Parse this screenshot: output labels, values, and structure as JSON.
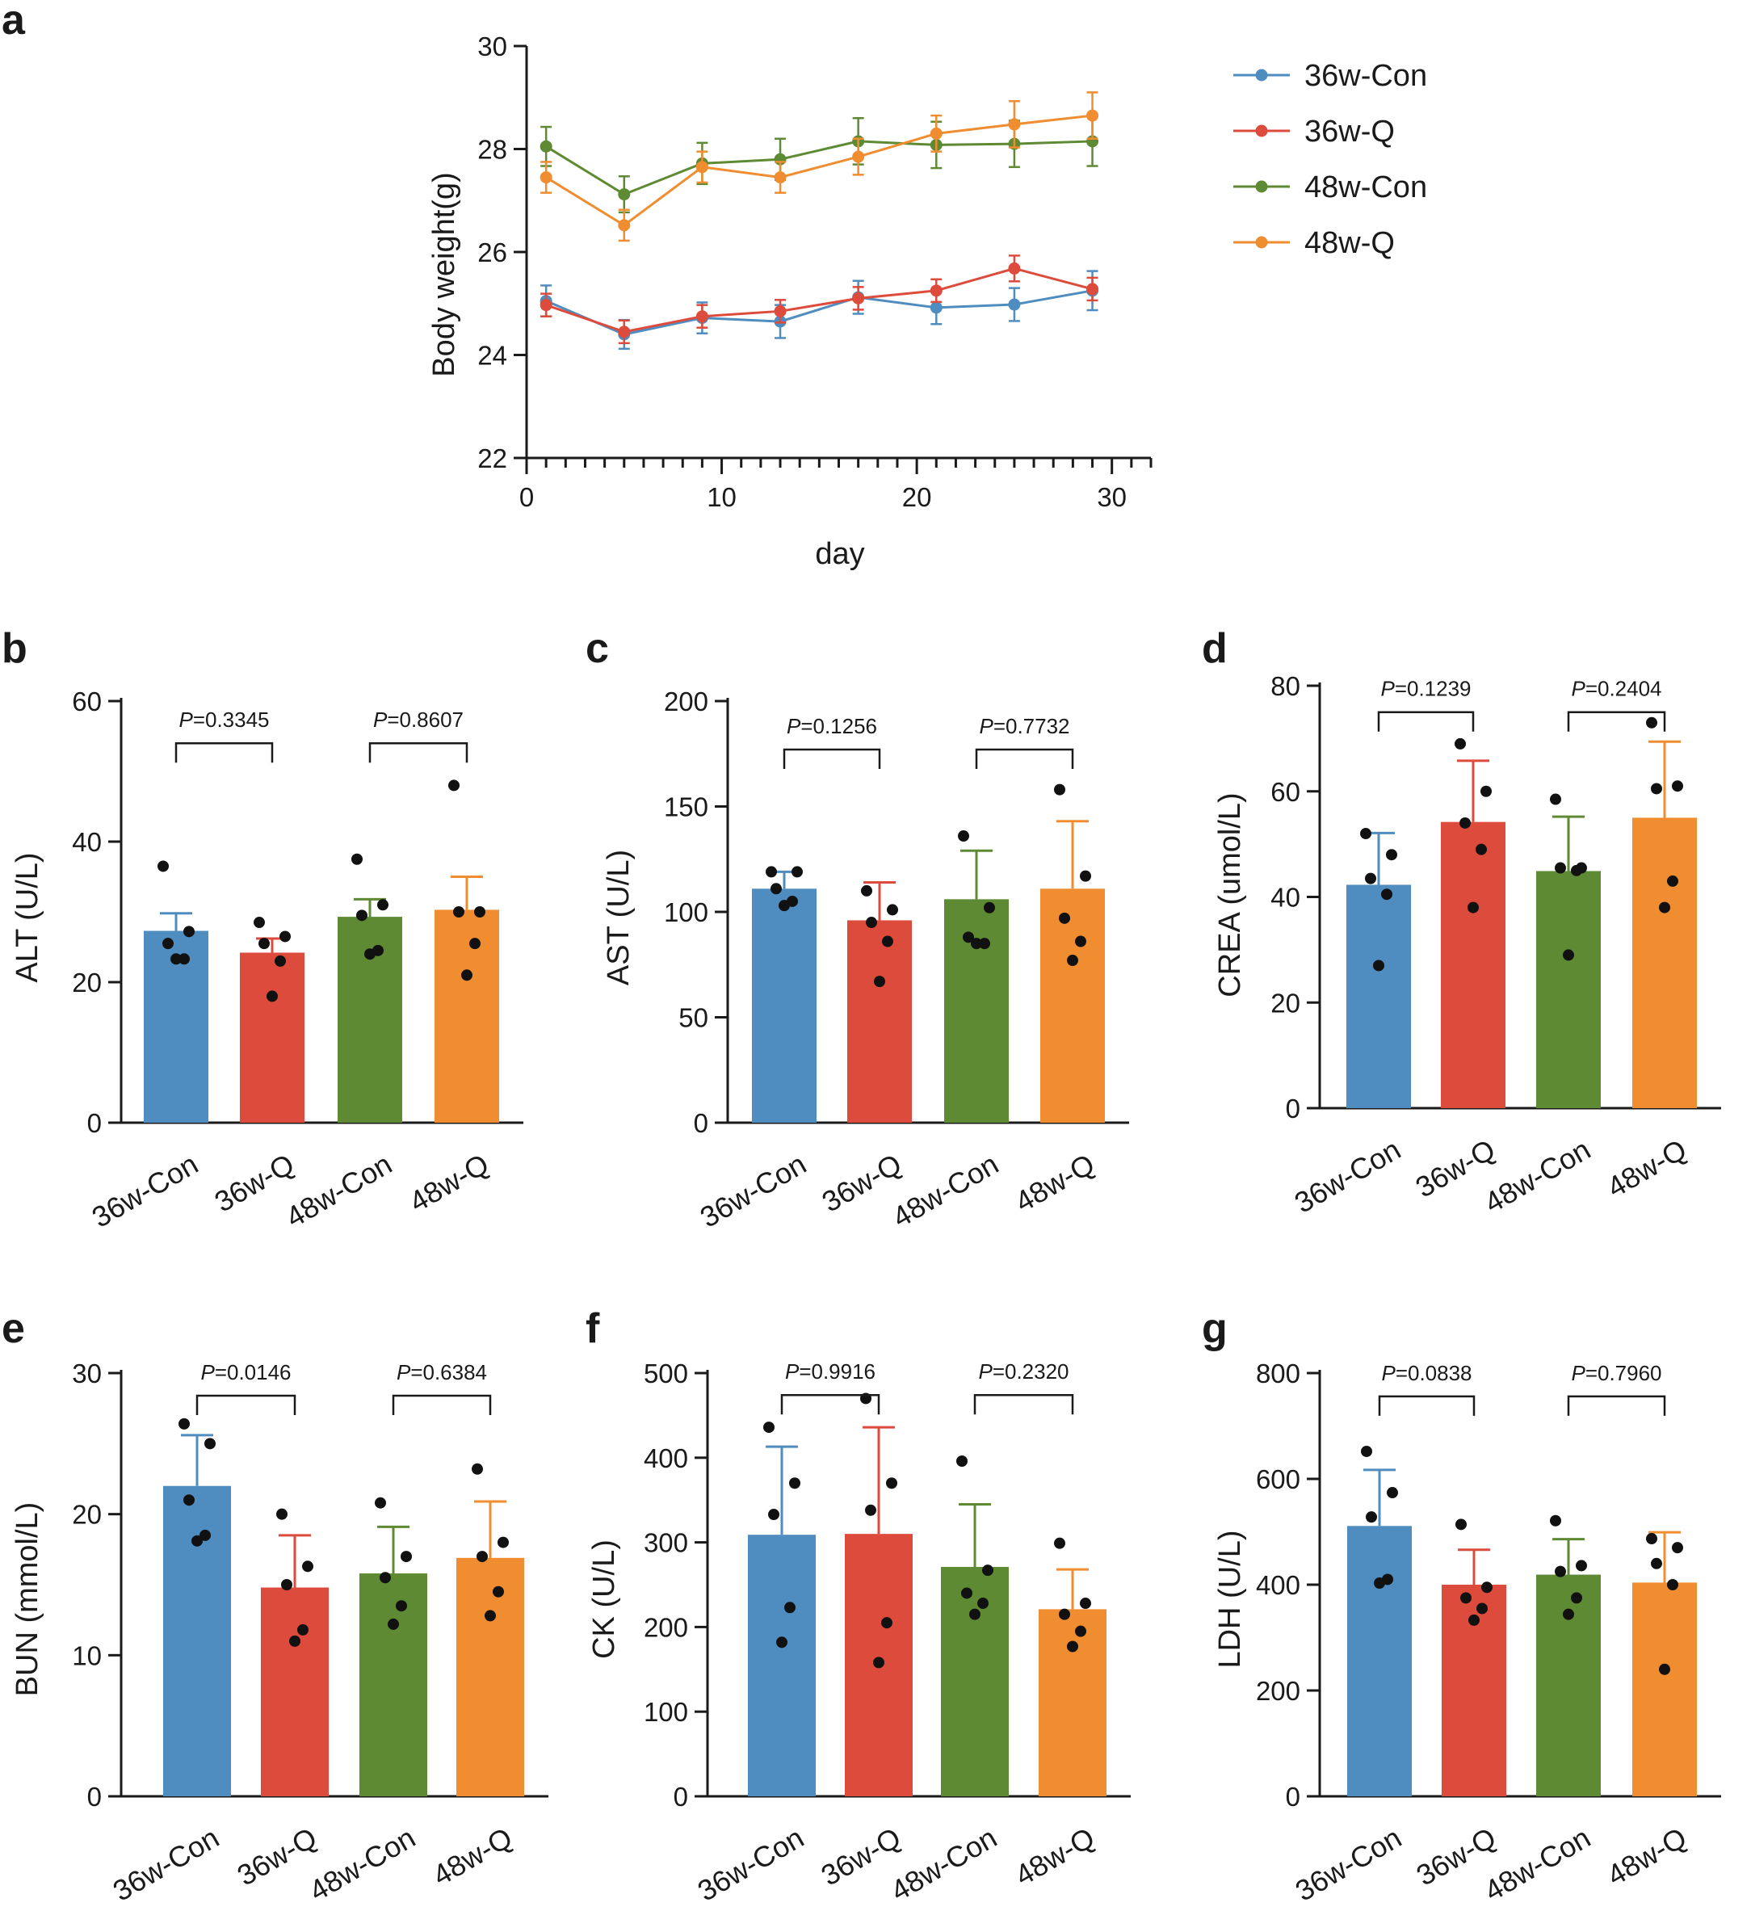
{
  "figure": {
    "panel_letters": [
      "a",
      "b",
      "c",
      "d",
      "e",
      "f",
      "g"
    ]
  },
  "chart_data": [
    {
      "id": "a",
      "type": "line",
      "title": "",
      "xlabel": "day",
      "ylabel": "Body weight(g)",
      "xlim": [
        0,
        32
      ],
      "ylim": [
        22,
        30
      ],
      "xticks": [
        0,
        10,
        20,
        30
      ],
      "yticks": [
        22,
        24,
        26,
        28,
        30
      ],
      "x": [
        1,
        5,
        9,
        13,
        17,
        21,
        25,
        29
      ],
      "series": [
        {
          "name": "36w-Con",
          "color": "#4f8dc0",
          "values": [
            25.05,
            24.4,
            24.72,
            24.65,
            25.12,
            24.92,
            24.98,
            25.25
          ],
          "err": [
            0.3,
            0.28,
            0.3,
            0.32,
            0.32,
            0.32,
            0.32,
            0.38
          ]
        },
        {
          "name": "36w-Q",
          "color": "#dd4b3c",
          "values": [
            24.97,
            24.45,
            24.75,
            24.85,
            25.1,
            25.25,
            25.68,
            25.28
          ],
          "err": [
            0.22,
            0.22,
            0.22,
            0.22,
            0.22,
            0.22,
            0.25,
            0.22
          ]
        },
        {
          "name": "48w-Con",
          "color": "#5f8a34",
          "values": [
            28.05,
            27.12,
            27.72,
            27.8,
            28.15,
            28.08,
            28.1,
            28.15
          ],
          "err": [
            0.38,
            0.35,
            0.4,
            0.4,
            0.45,
            0.45,
            0.45,
            0.48
          ]
        },
        {
          "name": "48w-Q",
          "color": "#ef8d30",
          "values": [
            27.45,
            26.52,
            27.65,
            27.45,
            27.85,
            28.3,
            28.48,
            28.65
          ],
          "err": [
            0.3,
            0.3,
            0.3,
            0.3,
            0.35,
            0.35,
            0.45,
            0.45
          ]
        }
      ]
    },
    {
      "id": "b",
      "type": "bar",
      "ylabel": "ALT (U/L)",
      "ylim": [
        0,
        60
      ],
      "yticks": [
        0,
        20,
        40,
        60
      ],
      "categories": [
        "36w-Con",
        "36w-Q",
        "48w-Con",
        "48w-Q"
      ],
      "colors": [
        "#4f8dc0",
        "#dd4b3c",
        "#5f8a34",
        "#ef8d30"
      ],
      "values": [
        27.3,
        24.2,
        29.3,
        30.3
      ],
      "sd": [
        2.5,
        2.0,
        2.5,
        4.7
      ],
      "points": [
        [
          36.5,
          27.2,
          25.5,
          23.3,
          23.3
        ],
        [
          28.5,
          26.5,
          25.5,
          23.0,
          18.0
        ],
        [
          37.5,
          31.0,
          29.5,
          24.5,
          24.0
        ],
        [
          48.0,
          30.0,
          30.0,
          25.5,
          21.0
        ]
      ],
      "comparisons": [
        {
          "from": 0,
          "to": 1,
          "label": "=0.3345",
          "y": 54
        },
        {
          "from": 2,
          "to": 3,
          "label": "=0.8607",
          "y": 54
        }
      ]
    },
    {
      "id": "c",
      "type": "bar",
      "ylabel": "AST (U/L)",
      "ylim": [
        0,
        200
      ],
      "yticks": [
        0,
        50,
        100,
        150,
        200
      ],
      "categories": [
        "36w-Con",
        "36w-Q",
        "48w-Con",
        "48w-Q"
      ],
      "colors": [
        "#4f8dc0",
        "#dd4b3c",
        "#5f8a34",
        "#ef8d30"
      ],
      "values": [
        111.0,
        96.0,
        106.0,
        111.0
      ],
      "sd": [
        8.0,
        18.0,
        23.0,
        32.0
      ],
      "points": [
        [
          119.0,
          119.0,
          111.0,
          105.0,
          103.0
        ],
        [
          110.0,
          101.0,
          95.0,
          86.0,
          67.0
        ],
        [
          136.0,
          102.0,
          88.0,
          85.0,
          85.0
        ],
        [
          158.0,
          117.0,
          97.0,
          86.0,
          77.0
        ]
      ],
      "comparisons": [
        {
          "from": 0,
          "to": 1,
          "label": "=0.1256",
          "y": 177
        },
        {
          "from": 2,
          "to": 3,
          "label": "=0.7732",
          "y": 177
        }
      ]
    },
    {
      "id": "d",
      "type": "bar",
      "ylabel": "CREA (umol/L)",
      "ylim": [
        0,
        80
      ],
      "yticks": [
        0,
        20,
        40,
        60,
        80
      ],
      "categories": [
        "36w-Con",
        "36w-Q",
        "48w-Con",
        "48w-Q"
      ],
      "colors": [
        "#4f8dc0",
        "#dd4b3c",
        "#5f8a34",
        "#ef8d30"
      ],
      "values": [
        42.3,
        54.2,
        44.9,
        55.0
      ],
      "sd": [
        9.8,
        11.6,
        10.3,
        14.4
      ],
      "points": [
        [
          52.0,
          48.0,
          43.5,
          40.5,
          27.0
        ],
        [
          69.0,
          60.0,
          54.0,
          49.0,
          38.0
        ],
        [
          58.5,
          45.5,
          45.5,
          45.0,
          29.0
        ],
        [
          73.0,
          61.0,
          60.5,
          43.0,
          38.0
        ]
      ],
      "comparisons": [
        {
          "from": 0,
          "to": 1,
          "label": "=0.1239",
          "y": 75
        },
        {
          "from": 2,
          "to": 3,
          "label": "=0.2404",
          "y": 75
        }
      ]
    },
    {
      "id": "e",
      "type": "bar",
      "ylabel": "BUN (mmol/L)",
      "ylim": [
        0,
        30
      ],
      "yticks": [
        0,
        10,
        20,
        30
      ],
      "categories": [
        "36w-Con",
        "36w-Q",
        "48w-Con",
        "48w-Q"
      ],
      "colors": [
        "#4f8dc0",
        "#dd4b3c",
        "#5f8a34",
        "#ef8d30"
      ],
      "values": [
        22.0,
        14.8,
        15.8,
        16.9
      ],
      "sd": [
        3.6,
        3.7,
        3.3,
        4.0
      ],
      "points": [
        [
          26.4,
          25.0,
          21.0,
          18.5,
          18.1
        ],
        [
          20.0,
          16.3,
          15.0,
          11.8,
          11.0
        ],
        [
          20.8,
          17.0,
          15.5,
          13.5,
          12.2
        ],
        [
          23.2,
          18.0,
          17.0,
          14.5,
          12.8
        ]
      ],
      "comparisons": [
        {
          "from": 0,
          "to": 1,
          "label": "=0.0146",
          "y": 28.4
        },
        {
          "from": 2,
          "to": 3,
          "label": "=0.6384",
          "y": 28.4
        }
      ]
    },
    {
      "id": "f",
      "type": "bar",
      "ylabel": "CK (U/L)",
      "ylim": [
        0,
        500
      ],
      "yticks": [
        0,
        100,
        200,
        300,
        400,
        500
      ],
      "categories": [
        "36w-Con",
        "36w-Q",
        "48w-Con",
        "48w-Q"
      ],
      "colors": [
        "#4f8dc0",
        "#dd4b3c",
        "#5f8a34",
        "#ef8d30"
      ],
      "values": [
        309.0,
        310.0,
        271.0,
        221.0
      ],
      "sd": [
        104.0,
        126.0,
        74.0,
        47.0
      ],
      "points": [
        [
          436.0,
          370.0,
          333.0,
          223.0,
          182.0
        ],
        [
          470.0,
          370.0,
          338.0,
          205.0,
          158.0
        ],
        [
          396.0,
          267.0,
          240.0,
          228.0,
          215.0
        ],
        [
          299.0,
          228.0,
          215.0,
          195.0,
          177.0
        ]
      ],
      "comparisons": [
        {
          "from": 0,
          "to": 1,
          "label": "=0.9916",
          "y": 474
        },
        {
          "from": 2,
          "to": 3,
          "label": "=0.2320",
          "y": 474
        }
      ]
    },
    {
      "id": "g",
      "type": "bar",
      "ylabel": "LDH (U/L)",
      "ylim": [
        0,
        800
      ],
      "yticks": [
        0,
        200,
        400,
        600,
        800
      ],
      "categories": [
        "36w-Con",
        "36w-Q",
        "48w-Con",
        "48w-Q"
      ],
      "colors": [
        "#4f8dc0",
        "#dd4b3c",
        "#5f8a34",
        "#ef8d30"
      ],
      "values": [
        511.0,
        400.0,
        419.0,
        404.0
      ],
      "sd": [
        106.0,
        66.0,
        67.0,
        95.0
      ],
      "points": [
        [
          652.0,
          574.0,
          528.0,
          410.0,
          403.0
        ],
        [
          514.0,
          395.0,
          375.0,
          355.0,
          333.0
        ],
        [
          521.0,
          436.0,
          425.0,
          375.0,
          344.0
        ],
        [
          487.0,
          470.0,
          440.0,
          400.0,
          240.0
        ]
      ],
      "comparisons": [
        {
          "from": 0,
          "to": 1,
          "label": "=0.0838",
          "y": 756
        },
        {
          "from": 2,
          "to": 3,
          "label": "=0.7960",
          "y": 756
        }
      ]
    }
  ]
}
